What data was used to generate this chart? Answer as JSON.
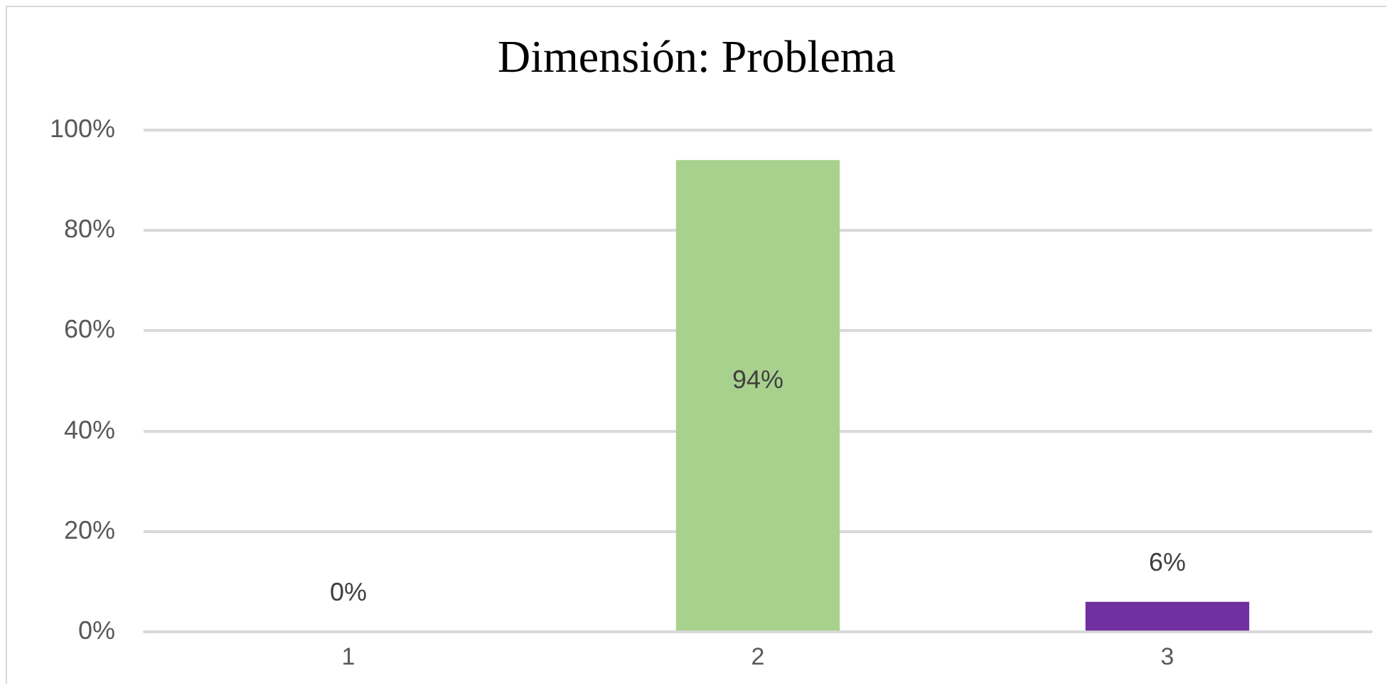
{
  "chart_data": {
    "type": "bar",
    "title": "Dimensión: Problema",
    "categories": [
      "1",
      "2",
      "3"
    ],
    "values": [
      0,
      94,
      6
    ],
    "colors": [
      "#4472c4",
      "#a9d18e",
      "#7030a0"
    ],
    "value_labels": [
      "0%",
      "94%",
      "6%"
    ],
    "ylim": [
      0,
      100
    ],
    "yticks": [
      {
        "value": 0,
        "label": "0%"
      },
      {
        "value": 20,
        "label": "20%"
      },
      {
        "value": 40,
        "label": "40%"
      },
      {
        "value": 60,
        "label": "60%"
      },
      {
        "value": 80,
        "label": "80%"
      },
      {
        "value": 100,
        "label": "100%"
      }
    ],
    "grid": "y",
    "legend": false
  }
}
